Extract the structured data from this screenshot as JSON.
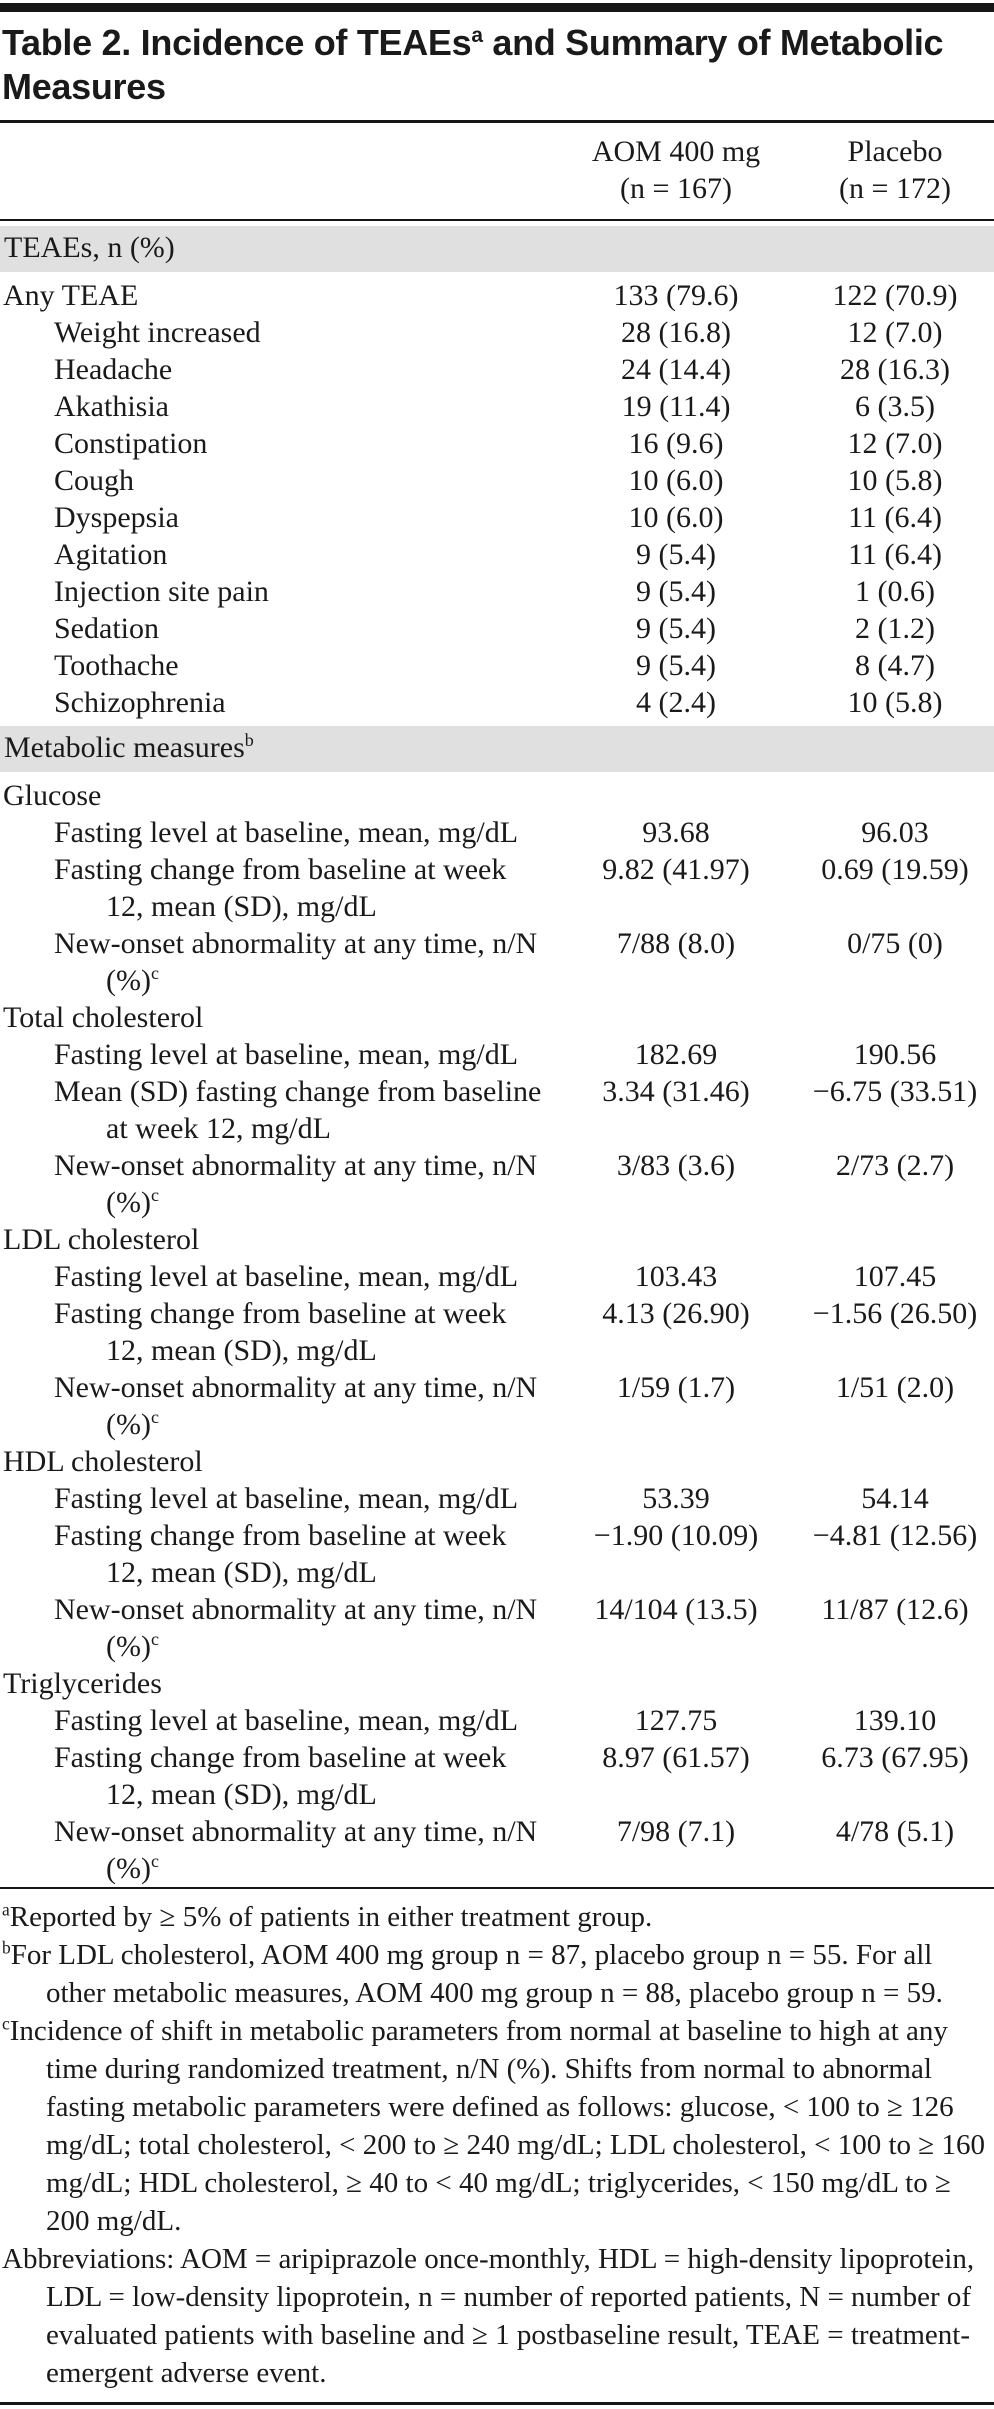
{
  "title": {
    "pre": "Table 2. Incidence of TEAEs",
    "sup": "a",
    "post": " and Summary of Metabolic Measures"
  },
  "columns": [
    {
      "line1": "AOM 400 mg",
      "line2": "(n = 167)"
    },
    {
      "line1": "Placebo",
      "line2": "(n = 172)"
    }
  ],
  "sections": [
    {
      "kind": "band",
      "label": "TEAEs, n (%)",
      "sup": ""
    },
    {
      "kind": "row",
      "indent": 0,
      "label": "Any TEAE",
      "sup": "",
      "values": [
        "133 (79.6)",
        "122 (70.9)"
      ]
    },
    {
      "kind": "row",
      "indent": 1,
      "label": "Weight increased",
      "sup": "",
      "values": [
        "28 (16.8)",
        "12 (7.0)"
      ]
    },
    {
      "kind": "row",
      "indent": 1,
      "label": "Headache",
      "sup": "",
      "values": [
        "24 (14.4)",
        "28 (16.3)"
      ]
    },
    {
      "kind": "row",
      "indent": 1,
      "label": "Akathisia",
      "sup": "",
      "values": [
        "19 (11.4)",
        "6 (3.5)"
      ]
    },
    {
      "kind": "row",
      "indent": 1,
      "label": "Constipation",
      "sup": "",
      "values": [
        "16 (9.6)",
        "12 (7.0)"
      ]
    },
    {
      "kind": "row",
      "indent": 1,
      "label": "Cough",
      "sup": "",
      "values": [
        "10 (6.0)",
        "10 (5.8)"
      ]
    },
    {
      "kind": "row",
      "indent": 1,
      "label": "Dyspepsia",
      "sup": "",
      "values": [
        "10 (6.0)",
        "11 (6.4)"
      ]
    },
    {
      "kind": "row",
      "indent": 1,
      "label": "Agitation",
      "sup": "",
      "values": [
        "9 (5.4)",
        "11 (6.4)"
      ]
    },
    {
      "kind": "row",
      "indent": 1,
      "label": "Injection site pain",
      "sup": "",
      "values": [
        "9 (5.4)",
        "1 (0.6)"
      ]
    },
    {
      "kind": "row",
      "indent": 1,
      "label": "Sedation",
      "sup": "",
      "values": [
        "9 (5.4)",
        "2 (1.2)"
      ]
    },
    {
      "kind": "row",
      "indent": 1,
      "label": "Toothache",
      "sup": "",
      "values": [
        "9 (5.4)",
        "8 (4.7)"
      ]
    },
    {
      "kind": "row",
      "indent": 1,
      "label": "Schizophrenia",
      "sup": "",
      "values": [
        "4 (2.4)",
        "10 (5.8)"
      ]
    },
    {
      "kind": "band",
      "label": "Metabolic measures",
      "sup": "b"
    },
    {
      "kind": "row",
      "indent": 0,
      "label": "Glucose",
      "sup": "",
      "values": [
        "",
        ""
      ]
    },
    {
      "kind": "row",
      "indent": 1,
      "label": "Fasting level at baseline, mean, mg/dL",
      "sup": "",
      "values": [
        "93.68",
        "96.03"
      ]
    },
    {
      "kind": "row",
      "indent": 1,
      "label": "Fasting change from baseline at week 12, mean (SD), mg/dL",
      "sup": "",
      "values": [
        "9.82 (41.97)",
        "0.69 (19.59)"
      ]
    },
    {
      "kind": "row",
      "indent": 1,
      "label": "New-onset abnormality at any time, n/N (%)",
      "sup": "c",
      "values": [
        "7/88 (8.0)",
        "0/75 (0)"
      ]
    },
    {
      "kind": "row",
      "indent": 0,
      "label": "Total cholesterol",
      "sup": "",
      "values": [
        "",
        ""
      ]
    },
    {
      "kind": "row",
      "indent": 1,
      "label": "Fasting level at baseline, mean, mg/dL",
      "sup": "",
      "values": [
        "182.69",
        "190.56"
      ]
    },
    {
      "kind": "row",
      "indent": 1,
      "label": "Mean (SD) fasting change from baseline at week 12, mg/dL",
      "sup": "",
      "values": [
        "3.34 (31.46)",
        "−6.75 (33.51)"
      ]
    },
    {
      "kind": "row",
      "indent": 1,
      "label": "New-onset abnormality at any time, n/N (%)",
      "sup": "c",
      "values": [
        "3/83 (3.6)",
        "2/73 (2.7)"
      ]
    },
    {
      "kind": "row",
      "indent": 0,
      "label": "LDL cholesterol",
      "sup": "",
      "values": [
        "",
        ""
      ]
    },
    {
      "kind": "row",
      "indent": 1,
      "label": "Fasting level at baseline, mean, mg/dL",
      "sup": "",
      "values": [
        "103.43",
        "107.45"
      ]
    },
    {
      "kind": "row",
      "indent": 1,
      "label": "Fasting change from baseline at week 12, mean (SD), mg/dL",
      "sup": "",
      "values": [
        "4.13 (26.90)",
        "−1.56 (26.50)"
      ]
    },
    {
      "kind": "row",
      "indent": 1,
      "label": "New-onset abnormality at any time, n/N (%)",
      "sup": "c",
      "values": [
        "1/59 (1.7)",
        "1/51 (2.0)"
      ]
    },
    {
      "kind": "row",
      "indent": 0,
      "label": "HDL cholesterol",
      "sup": "",
      "values": [
        "",
        ""
      ]
    },
    {
      "kind": "row",
      "indent": 1,
      "label": "Fasting level at baseline, mean, mg/dL",
      "sup": "",
      "values": [
        "53.39",
        "54.14"
      ]
    },
    {
      "kind": "row",
      "indent": 1,
      "label": "Fasting change from baseline at week 12, mean (SD), mg/dL",
      "sup": "",
      "values": [
        "−1.90 (10.09)",
        "−4.81 (12.56)"
      ]
    },
    {
      "kind": "row",
      "indent": 1,
      "label": "New-onset abnormality at any time, n/N (%)",
      "sup": "c",
      "values": [
        "14/104 (13.5)",
        "11/87 (12.6)"
      ]
    },
    {
      "kind": "row",
      "indent": 0,
      "label": "Triglycerides",
      "sup": "",
      "values": [
        "",
        ""
      ]
    },
    {
      "kind": "row",
      "indent": 1,
      "label": "Fasting level at baseline, mean, mg/dL",
      "sup": "",
      "values": [
        "127.75",
        "139.10"
      ]
    },
    {
      "kind": "row",
      "indent": 1,
      "label": "Fasting change from baseline at week 12, mean (SD), mg/dL",
      "sup": "",
      "values": [
        "8.97 (61.57)",
        "6.73 (67.95)"
      ]
    },
    {
      "kind": "row",
      "indent": 1,
      "label": "New-onset abnormality at any time, n/N (%)",
      "sup": "c",
      "values": [
        "7/98 (7.1)",
        "4/78 (5.1)"
      ]
    }
  ],
  "footnotes": [
    {
      "marker": "a",
      "text": "Reported by ≥ 5% of patients in either treatment group."
    },
    {
      "marker": "b",
      "text": "For LDL cholesterol, AOM 400 mg group n = 87, placebo group n = 55. For all other metabolic measures, AOM 400 mg group n = 88, placebo group n = 59."
    },
    {
      "marker": "c",
      "text": "Incidence of shift in metabolic parameters from normal at baseline to high at any time during randomized treatment, n/N (%). Shifts from normal to abnormal fasting metabolic parameters were defined as follows: glucose, < 100 to ≥ 126 mg/dL; total cholesterol, < 200 to ≥ 240 mg/dL; LDL cholesterol, < 100 to ≥ 160 mg/dL; HDL cholesterol, ≥ 40 to < 40 mg/dL; triglycerides, < 150 mg/dL to ≥ 200 mg/dL."
    },
    {
      "marker": "",
      "text": "Abbreviations: AOM = aripiprazole once-monthly, HDL = high-density lipoprotein, LDL = low-density lipoprotein, n = number of reported patients, N = number of evaluated patients with baseline and ≥ 1 postbaseline result, TEAE = treatment-emergent adverse event."
    }
  ],
  "colors": {
    "band_bg": "#e0e0e0",
    "text": "#1a1a1a",
    "rule": "#161616"
  }
}
